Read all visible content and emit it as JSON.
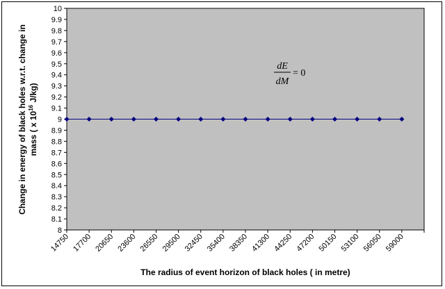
{
  "chart_data": {
    "type": "line",
    "title": "",
    "xlabel": "The radius of event horizon of black holes  ( in metre)",
    "ylabel": {
      "line1_prefix": "Change in   energy of black holes w.r.t. change in",
      "line2_prefix": "mass ( x 10",
      "line2_sup": "16",
      "line2_suffix": " J/kg)"
    },
    "categories": [
      "14750",
      "17700",
      "20650",
      "23600",
      "26550",
      "29500",
      "32450",
      "35400",
      "38350",
      "41300",
      "44250",
      "47200",
      "50150",
      "53100",
      "56050",
      "59000"
    ],
    "series": [
      {
        "values": [
          9,
          9,
          9,
          9,
          9,
          9,
          9,
          9,
          9,
          9,
          9,
          9,
          9,
          9,
          9,
          9
        ]
      }
    ],
    "ylim": [
      8,
      10
    ],
    "ytick_step": 0.1,
    "yticks": [
      "8",
      "8.1",
      "8.2",
      "8.3",
      "8.4",
      "8.5",
      "8.6",
      "8.7",
      "8.8",
      "8.9",
      "9",
      "9.1",
      "9.2",
      "9.3",
      "9.4",
      "9.5",
      "9.6",
      "9.7",
      "9.8",
      "9.9",
      "10"
    ],
    "grid": false,
    "legend": "none",
    "annotation": {
      "numerator": "dE",
      "denominator": "dM",
      "rhs": "= 0"
    },
    "colors": {
      "plot_background": "#c0c0c0",
      "series": "#000080"
    }
  }
}
